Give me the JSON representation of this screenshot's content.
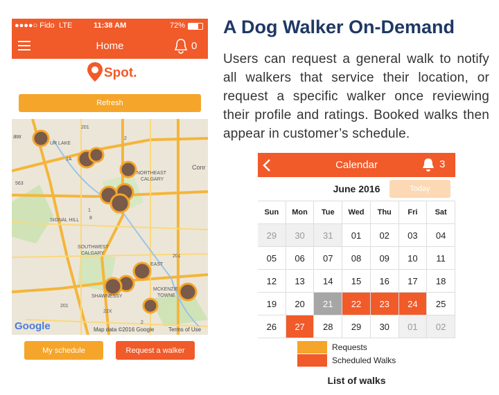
{
  "phone": {
    "status": {
      "carrier": "●●●●○ Fido",
      "network": "LTE",
      "time": "11:38 AM",
      "battery": "72%"
    },
    "nav": {
      "title": "Home",
      "badge": "0"
    },
    "logo": "Spot.",
    "refresh": "Refresh",
    "map": {
      "labels": [
        "aw",
        "UR LAKE",
        "1A",
        "201",
        "2",
        "563",
        "NORTHEAST",
        "CALGARY",
        "Conr",
        "SIGNAL HILL",
        "8",
        "SOUTHWEST",
        "CALGARY",
        "201",
        "EAST",
        "MCKENZIE",
        "TOWNE",
        "SHAWNESSY",
        "22X",
        "2",
        "201",
        "1"
      ],
      "google": "Google",
      "attribution": "Map data ©2016 Google",
      "terms": "Terms of Use"
    },
    "buttons": [
      "My schedule",
      "Request a walker"
    ]
  },
  "heading": "A Dog Walker On-Demand",
  "description": "Users can request a general walk to notify all walkers that service their location, or request a specific walker once reviewing their profile and ratings. Booked walks then appear in customer’s schedule.",
  "calendar": {
    "title": "Calendar",
    "badge": "3",
    "month": "June 2016",
    "today": "Today",
    "weekdays": [
      "Sun",
      "Mon",
      "Tue",
      "Wed",
      "Thu",
      "Fri",
      "Sat"
    ],
    "weeks": [
      [
        {
          "label": "29",
          "state": "other"
        },
        {
          "label": "30",
          "state": "other"
        },
        {
          "label": "31",
          "state": "other"
        },
        {
          "label": "01"
        },
        {
          "label": "02"
        },
        {
          "label": "03"
        },
        {
          "label": "04"
        }
      ],
      [
        {
          "label": "05"
        },
        {
          "label": "06"
        },
        {
          "label": "07"
        },
        {
          "label": "08"
        },
        {
          "label": "09"
        },
        {
          "label": "10"
        },
        {
          "label": "11"
        }
      ],
      [
        {
          "label": "12"
        },
        {
          "label": "13"
        },
        {
          "label": "14"
        },
        {
          "label": "15"
        },
        {
          "label": "16"
        },
        {
          "label": "17"
        },
        {
          "label": "18"
        }
      ],
      [
        {
          "label": "19"
        },
        {
          "label": "20"
        },
        {
          "label": "21",
          "state": "selected"
        },
        {
          "label": "22",
          "state": "scheduled"
        },
        {
          "label": "23",
          "state": "scheduled"
        },
        {
          "label": "24",
          "state": "scheduled"
        },
        {
          "label": "25"
        }
      ],
      [
        {
          "label": "26"
        },
        {
          "label": "27",
          "state": "scheduled"
        },
        {
          "label": "28"
        },
        {
          "label": "29"
        },
        {
          "label": "30"
        },
        {
          "label": "01",
          "state": "other"
        },
        {
          "label": "02",
          "state": "other"
        }
      ]
    ],
    "legend": [
      {
        "label": "Requests",
        "color": "#f5a52a"
      },
      {
        "label": "Scheduled Walks",
        "color": "#f15a29"
      }
    ],
    "footer": "List of walks"
  }
}
